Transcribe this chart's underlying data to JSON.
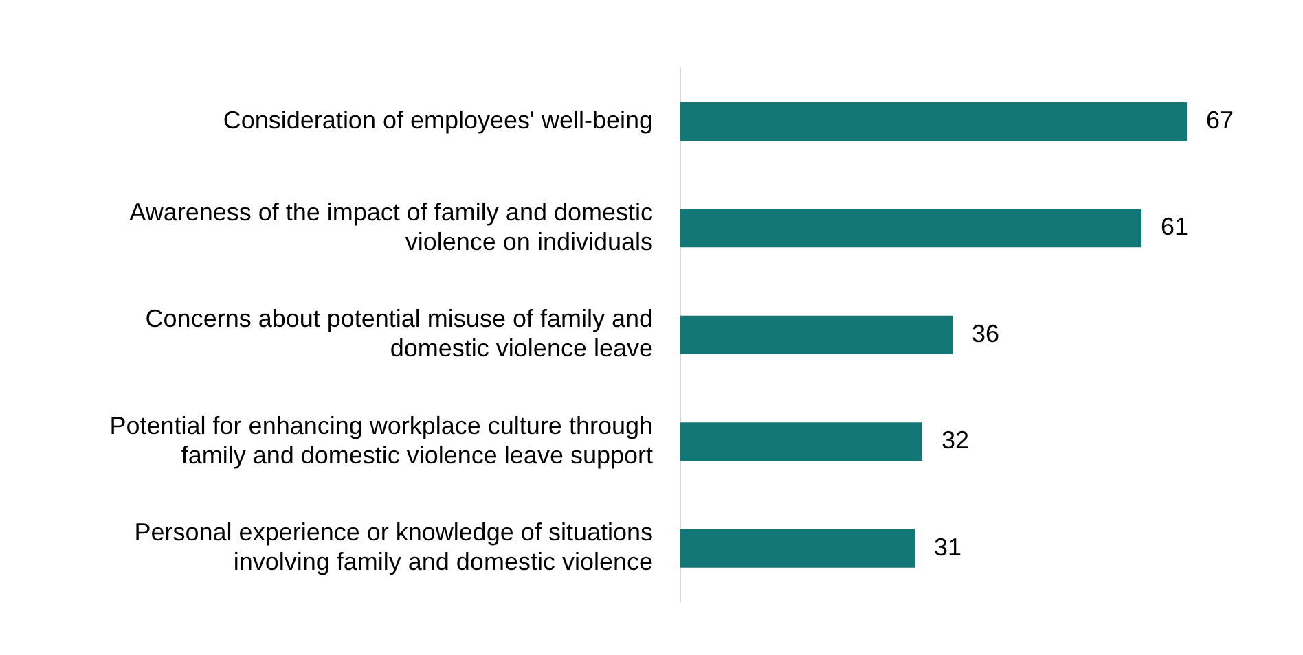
{
  "chart_data": {
    "type": "bar",
    "orientation": "horizontal",
    "categories": [
      "Consideration of employees' well-being",
      "Awareness of the impact of family and domestic violence on individuals",
      "Concerns about potential misuse of family and domestic violence leave",
      "Potential for enhancing workplace culture through family and domestic violence leave support",
      "Personal experience or knowledge of situations involving family and domestic violence"
    ],
    "values": [
      67,
      61,
      36,
      32,
      31
    ],
    "color": "#137677",
    "data_labels": true,
    "tick_labels": "y"
  }
}
